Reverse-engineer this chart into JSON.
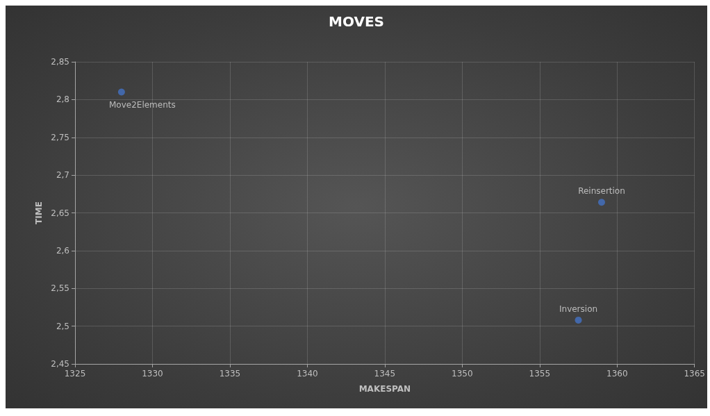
{
  "chart_data": {
    "type": "scatter",
    "title": "MOVES",
    "xlabel": "MAKESPAN",
    "ylabel": "TIME",
    "x": [
      1328,
      1359,
      1357.5
    ],
    "values": [
      2.81,
      2.664,
      2.508
    ],
    "color": "#4472c4",
    "marker": "circle",
    "xlim": [
      1325,
      1365
    ],
    "xticks": [
      1325,
      1330,
      1335,
      1340,
      1345,
      1350,
      1355,
      1360,
      1365
    ],
    "ylim": [
      2.45,
      2.85
    ],
    "yticks": [
      {
        "value": 2.45,
        "label": "2,45"
      },
      {
        "value": 2.5,
        "label": "2,5"
      },
      {
        "value": 2.55,
        "label": "2,55"
      },
      {
        "value": 2.6,
        "label": "2,6"
      },
      {
        "value": 2.65,
        "label": "2,65"
      },
      {
        "value": 2.7,
        "label": "2,7"
      },
      {
        "value": 2.75,
        "label": "2,75"
      },
      {
        "value": 2.8,
        "label": "2,8"
      },
      {
        "value": 2.85,
        "label": "2,85"
      }
    ],
    "grid": true,
    "annotations": [
      {
        "text": "Move2Elements",
        "x": 1328,
        "y": 2.81
      },
      {
        "text": "Reinsertion",
        "x": 1359,
        "y": 2.664
      },
      {
        "text": "Inversion",
        "x": 1357.5,
        "y": 2.508
      }
    ]
  }
}
